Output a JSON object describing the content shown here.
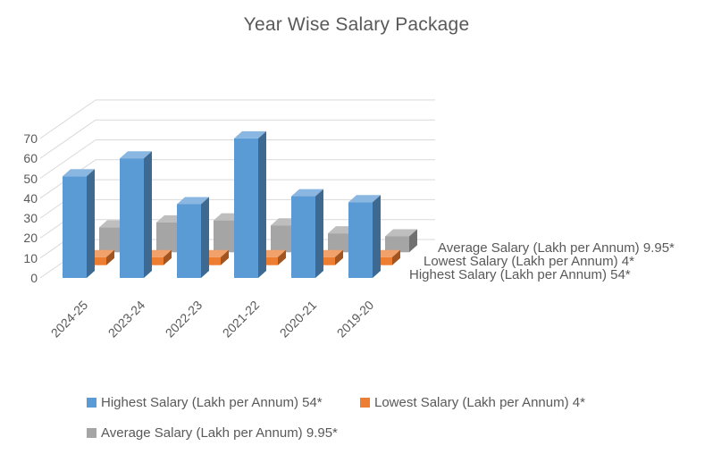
{
  "title": "Year Wise Salary Package",
  "colors": {
    "text": "#595959",
    "grid": "#d9d9d9",
    "background": "#ffffff"
  },
  "chart_data": {
    "type": "bar",
    "variant": "3d-column, series along depth axis",
    "title": "Year Wise Salary Package",
    "categories": [
      "2024-25",
      "2023-24",
      "2022-23",
      "2021-22",
      "2020-21",
      "2019-20"
    ],
    "series": [
      {
        "name": "Highest Salary (Lakh per Annum) 54*",
        "color": "#5b9bd5",
        "values": [
          51,
          60,
          37,
          70,
          41,
          38
        ]
      },
      {
        "name": "Lowest Salary (Lakh per Annum) 4*",
        "color": "#ed7d31",
        "values": [
          4,
          4,
          4,
          4,
          4,
          4
        ]
      },
      {
        "name": "Average Salary (Lakh per Annum) 9.95*",
        "color": "#a5a5a5",
        "values": [
          12.5,
          15,
          16,
          13.5,
          9.5,
          8
        ]
      }
    ],
    "value_axis": {
      "min": 0,
      "max": 70,
      "step": 10,
      "tick_labels": [
        "0",
        "10",
        "20",
        "30",
        "40",
        "50",
        "60",
        "70"
      ]
    },
    "category_axis_label_rotation": -45,
    "depth_axis_labels": [
      "Highest Salary (Lakh per Annum) 54*",
      "Lowest Salary (Lakh per Annum) 4*",
      "Average Salary (Lakh per Annum) 9.95*"
    ],
    "legend_position": "bottom",
    "grid": true
  }
}
